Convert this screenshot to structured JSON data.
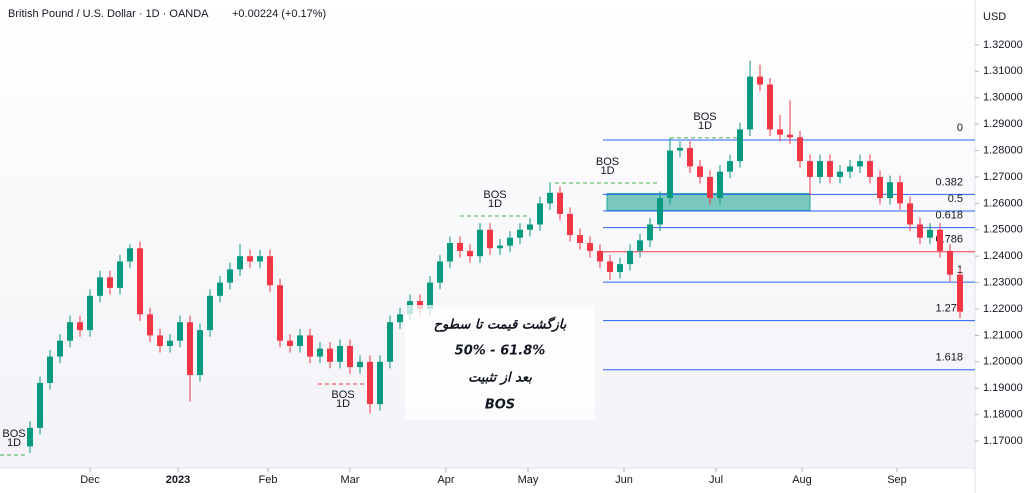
{
  "chart_data": {
    "type": "candlestick",
    "title": "British Pound / U.S. Dollar · 1D · OANDA",
    "change": "+0.00224 (+0.17%)",
    "currency": "USD",
    "up_color": "#089981",
    "down_color": "#f23645",
    "xlim": [
      -3,
      94.5
    ],
    "xticks": [
      {
        "value": 6,
        "label": "Dec"
      },
      {
        "value": 14.8,
        "label": "2023"
      },
      {
        "value": 23.8,
        "label": "Feb"
      },
      {
        "value": 32,
        "label": "Mar"
      },
      {
        "value": 41.6,
        "label": "Apr"
      },
      {
        "value": 49.8,
        "label": "May"
      },
      {
        "value": 59.4,
        "label": "Jun"
      },
      {
        "value": 68.6,
        "label": "Jul"
      },
      {
        "value": 77.2,
        "label": "Aug"
      },
      {
        "value": 86.7,
        "label": "Sep"
      }
    ],
    "ylim": [
      1.1598,
      1.337
    ],
    "yticks": [
      {
        "value": 1.17,
        "label": "1.17000"
      },
      {
        "value": 1.18,
        "label": "1.18000"
      },
      {
        "value": 1.19,
        "label": "1.19000"
      },
      {
        "value": 1.2,
        "label": "1.20000"
      },
      {
        "value": 1.21,
        "label": "1.21000"
      },
      {
        "value": 1.22,
        "label": "1.22000"
      },
      {
        "value": 1.23,
        "label": "1.23000"
      },
      {
        "value": 1.24,
        "label": "1.24000"
      },
      {
        "value": 1.25,
        "label": "1.25000"
      },
      {
        "value": 1.26,
        "label": "1.26000"
      },
      {
        "value": 1.27,
        "label": "1.27000"
      },
      {
        "value": 1.28,
        "label": "1.28000"
      },
      {
        "value": 1.29,
        "label": "1.29000"
      },
      {
        "value": 1.3,
        "label": "1.30000"
      },
      {
        "value": 1.31,
        "label": "1.31000"
      },
      {
        "value": 1.32,
        "label": "1.32000"
      }
    ],
    "candles": [
      [
        1.168,
        1.1775,
        1.1655,
        1.175
      ],
      [
        1.175,
        1.1945,
        1.1725,
        1.192
      ],
      [
        1.192,
        1.2045,
        1.1895,
        1.202
      ],
      [
        1.202,
        1.2105,
        1.1995,
        1.208
      ],
      [
        1.208,
        1.2175,
        1.2055,
        1.215
      ],
      [
        1.215,
        1.2175,
        1.2095,
        1.212
      ],
      [
        1.212,
        1.2275,
        1.2095,
        1.225
      ],
      [
        1.225,
        1.2345,
        1.2225,
        1.232
      ],
      [
        1.232,
        1.2345,
        1.2255,
        1.228
      ],
      [
        1.228,
        1.2405,
        1.2255,
        1.238
      ],
      [
        1.238,
        1.2445,
        1.2355,
        1.243
      ],
      [
        1.243,
        1.2455,
        1.2155,
        1.218
      ],
      [
        1.218,
        1.2205,
        1.2075,
        1.21
      ],
      [
        1.21,
        1.2125,
        1.2035,
        1.206
      ],
      [
        1.206,
        1.2105,
        1.2035,
        1.208
      ],
      [
        1.208,
        1.2175,
        1.2055,
        1.215
      ],
      [
        1.215,
        1.2175,
        1.185,
        1.195
      ],
      [
        1.195,
        1.2145,
        1.1925,
        1.212
      ],
      [
        1.212,
        1.2275,
        1.2095,
        1.225
      ],
      [
        1.225,
        1.2325,
        1.2225,
        1.23
      ],
      [
        1.23,
        1.2375,
        1.2275,
        1.235
      ],
      [
        1.235,
        1.2445,
        1.2325,
        1.24
      ],
      [
        1.24,
        1.2425,
        1.2355,
        1.238
      ],
      [
        1.238,
        1.2425,
        1.2355,
        1.24
      ],
      [
        1.24,
        1.2425,
        1.2265,
        1.229
      ],
      [
        1.229,
        1.2315,
        1.2055,
        1.208
      ],
      [
        1.208,
        1.2105,
        1.2035,
        1.206
      ],
      [
        1.206,
        1.2125,
        1.2035,
        1.21
      ],
      [
        1.21,
        1.2125,
        1.1995,
        1.202
      ],
      [
        1.202,
        1.2075,
        1.1995,
        1.205
      ],
      [
        1.205,
        1.2075,
        1.1975,
        1.2
      ],
      [
        1.2,
        1.2085,
        1.1975,
        1.206
      ],
      [
        1.206,
        1.2085,
        1.1955,
        1.198
      ],
      [
        1.198,
        1.2025,
        1.1955,
        1.2
      ],
      [
        1.2,
        1.2025,
        1.1805,
        1.184
      ],
      [
        1.184,
        1.2025,
        1.1815,
        1.2
      ],
      [
        1.2,
        1.2175,
        1.1975,
        1.215
      ],
      [
        1.215,
        1.2205,
        1.2125,
        1.218
      ],
      [
        1.218,
        1.2255,
        1.2155,
        1.223
      ],
      [
        1.223,
        1.2255,
        1.2175,
        1.22
      ],
      [
        1.22,
        1.2325,
        1.2175,
        1.23
      ],
      [
        1.23,
        1.2405,
        1.2275,
        1.238
      ],
      [
        1.238,
        1.2475,
        1.2355,
        1.245
      ],
      [
        1.245,
        1.2475,
        1.2395,
        1.242
      ],
      [
        1.242,
        1.2445,
        1.2375,
        1.24
      ],
      [
        1.24,
        1.2525,
        1.2375,
        1.25
      ],
      [
        1.25,
        1.2525,
        1.2405,
        1.243
      ],
      [
        1.243,
        1.2465,
        1.2405,
        1.244
      ],
      [
        1.244,
        1.2495,
        1.2415,
        1.247
      ],
      [
        1.247,
        1.2525,
        1.2445,
        1.25
      ],
      [
        1.25,
        1.2545,
        1.2475,
        1.252
      ],
      [
        1.252,
        1.2625,
        1.2495,
        1.26
      ],
      [
        1.26,
        1.268,
        1.2575,
        1.264
      ],
      [
        1.264,
        1.2665,
        1.2535,
        1.256
      ],
      [
        1.256,
        1.2585,
        1.2455,
        1.248
      ],
      [
        1.248,
        1.2505,
        1.2425,
        1.245
      ],
      [
        1.245,
        1.2475,
        1.2395,
        1.242
      ],
      [
        1.242,
        1.2445,
        1.2355,
        1.238
      ],
      [
        1.238,
        1.2405,
        1.231,
        1.234
      ],
      [
        1.234,
        1.2395,
        1.2315,
        1.237
      ],
      [
        1.237,
        1.2445,
        1.2345,
        1.242
      ],
      [
        1.242,
        1.2485,
        1.2395,
        1.246
      ],
      [
        1.246,
        1.2545,
        1.2435,
        1.252
      ],
      [
        1.252,
        1.2645,
        1.2495,
        1.262
      ],
      [
        1.262,
        1.2848,
        1.2595,
        1.28
      ],
      [
        1.28,
        1.2835,
        1.2775,
        1.281
      ],
      [
        1.281,
        1.2835,
        1.2715,
        1.274
      ],
      [
        1.274,
        1.2765,
        1.2675,
        1.27
      ],
      [
        1.27,
        1.2725,
        1.2595,
        1.262
      ],
      [
        1.262,
        1.2745,
        1.2595,
        1.272
      ],
      [
        1.272,
        1.2785,
        1.2695,
        1.276
      ],
      [
        1.276,
        1.2905,
        1.2735,
        1.288
      ],
      [
        1.288,
        1.314,
        1.2855,
        1.308
      ],
      [
        1.308,
        1.3125,
        1.3025,
        1.305
      ],
      [
        1.305,
        1.3075,
        1.2855,
        1.288
      ],
      [
        1.288,
        1.2935,
        1.2835,
        1.286
      ],
      [
        1.286,
        1.299,
        1.2825,
        1.285
      ],
      [
        1.285,
        1.2875,
        1.2735,
        1.276
      ],
      [
        1.276,
        1.2785,
        1.263,
        1.27
      ],
      [
        1.27,
        1.2785,
        1.2675,
        1.276
      ],
      [
        1.276,
        1.2785,
        1.2675,
        1.27
      ],
      [
        1.27,
        1.2745,
        1.2675,
        1.272
      ],
      [
        1.272,
        1.2765,
        1.2695,
        1.274
      ],
      [
        1.274,
        1.2785,
        1.2715,
        1.276
      ],
      [
        1.276,
        1.2785,
        1.2675,
        1.27
      ],
      [
        1.27,
        1.2725,
        1.2595,
        1.262
      ],
      [
        1.262,
        1.2705,
        1.2595,
        1.268
      ],
      [
        1.268,
        1.2705,
        1.2575,
        1.26
      ],
      [
        1.26,
        1.2625,
        1.2495,
        1.252
      ],
      [
        1.252,
        1.2545,
        1.2445,
        1.247
      ],
      [
        1.247,
        1.2525,
        1.2445,
        1.25
      ],
      [
        1.25,
        1.2525,
        1.2395,
        1.242
      ],
      [
        1.242,
        1.2445,
        1.2305,
        1.233
      ],
      [
        1.233,
        1.2355,
        1.2165,
        1.219
      ]
    ],
    "fib": {
      "x_start": 57.3,
      "levels": [
        {
          "label": "0",
          "price": 1.284,
          "color": "#2962ff"
        },
        {
          "label": "0.382",
          "price": 1.2634,
          "color": "#2962ff"
        },
        {
          "label": "0.5",
          "price": 1.2571,
          "color": "#2962ff"
        },
        {
          "label": "0.618",
          "price": 1.2508,
          "color": "#2962ff"
        },
        {
          "label": "0.786",
          "price": 1.2417,
          "color": "#f23645"
        },
        {
          "label": "1",
          "price": 1.2302,
          "color": "#2962ff"
        },
        {
          "label": "1.272",
          "price": 1.2156,
          "color": "#2962ff"
        },
        {
          "label": "1.618",
          "price": 1.197,
          "color": "#2962ff"
        }
      ]
    },
    "zone": {
      "x": [
        57.7,
        78
      ],
      "top": 1.2637,
      "bottom": 1.2573,
      "color": "#26a69a"
    },
    "bos": [
      {
        "label": "BOS",
        "timeframe": "1D",
        "price": 1.1647,
        "x": [
          -3,
          -0.2
        ],
        "color": "#4caf50"
      },
      {
        "label": "BOS",
        "timeframe": "1D",
        "price": 1.1916,
        "x": [
          28.8,
          33.8
        ],
        "color": "#f23645"
      },
      {
        "label": "BOS",
        "timeframe": "1D",
        "price": 1.2552,
        "x": [
          43,
          50
        ],
        "color": "#4caf50"
      },
      {
        "label": "BOS",
        "timeframe": "1D",
        "price": 1.2677,
        "x": [
          52.5,
          63
        ],
        "color": "#4caf50"
      },
      {
        "label": "BOS",
        "timeframe": "1D",
        "price": 1.2848,
        "x": [
          64,
          71
        ],
        "color": "#4caf50"
      }
    ],
    "note": [
      "بازگشت قیمت  تا سطوح",
      "50%  - 61.8%",
      "بعد از تثبیت",
      "BOS"
    ]
  }
}
